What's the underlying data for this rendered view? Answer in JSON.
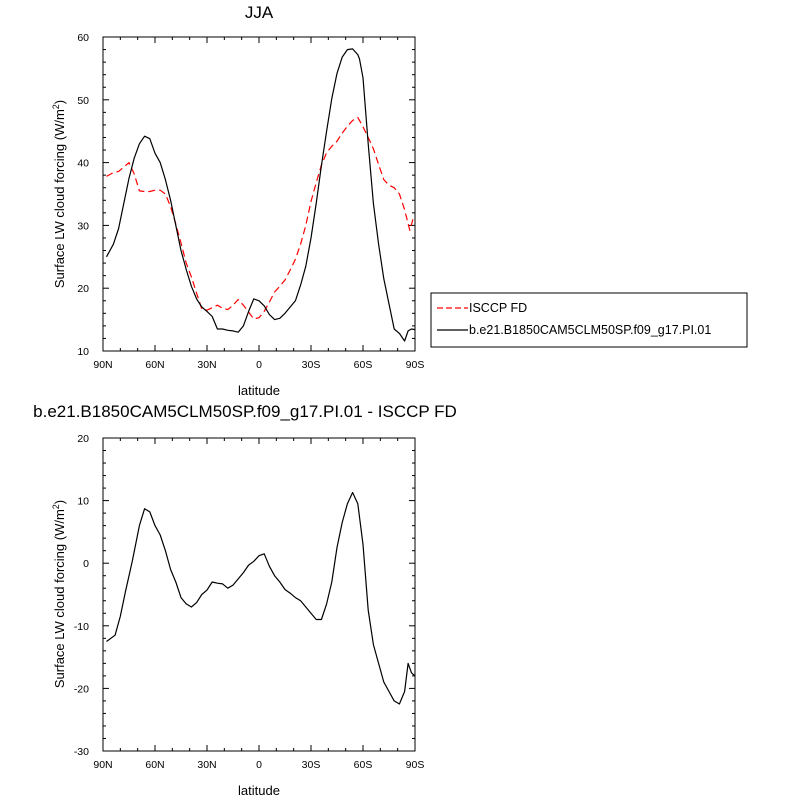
{
  "chart_data": [
    {
      "type": "line",
      "title": "JJA",
      "xlabel": "latitude",
      "ylabel": "Surface LW cloud forcing (W/m",
      "ylabel_sup": "2",
      "ylabel_close": ")",
      "xlim": [
        90,
        -90
      ],
      "ylim": [
        10,
        60
      ],
      "x_ticks": [
        90,
        60,
        30,
        0,
        -30,
        -60,
        -90
      ],
      "x_tick_labels": [
        "90N",
        "60N",
        "30N",
        "0",
        "30S",
        "60S",
        "90S"
      ],
      "y_ticks": [
        10,
        20,
        30,
        40,
        50,
        60
      ],
      "y_tick_labels": [
        "10",
        "20",
        "30",
        "40",
        "50",
        "60"
      ],
      "legend_position": "right",
      "series": [
        {
          "name": "ISCCP FD",
          "color": "#ff0000",
          "dash": "dashed",
          "x": [
            88,
            84,
            81,
            78,
            75,
            72,
            69,
            66,
            63,
            60,
            57,
            54,
            51,
            48,
            45,
            42,
            39,
            36,
            33,
            30,
            27,
            24,
            21,
            18,
            15,
            12,
            9,
            6,
            3,
            0,
            -3,
            -6,
            -9,
            -12,
            -15,
            -18,
            -21,
            -24,
            -27,
            -30,
            -33,
            -36,
            -39,
            -42,
            -45,
            -48,
            -51,
            -54,
            -57,
            -60,
            -63,
            -66,
            -69,
            -72,
            -75,
            -78,
            -81,
            -84,
            -87,
            -89
          ],
          "y": [
            37.8,
            38.4,
            38.6,
            39.3,
            40.0,
            38.2,
            35.5,
            35.4,
            35.4,
            35.6,
            35.6,
            35.0,
            33.0,
            30.2,
            27.2,
            24.0,
            21.8,
            19.2,
            16.7,
            16.5,
            16.9,
            17.3,
            16.8,
            16.6,
            17.3,
            18.2,
            17.3,
            16.2,
            15.1,
            15.3,
            16.3,
            17.8,
            19.4,
            20.3,
            21.3,
            22.9,
            24.6,
            27.0,
            30.0,
            33.8,
            36.8,
            39.6,
            41.6,
            42.6,
            43.4,
            44.7,
            45.8,
            46.7,
            47.2,
            45.7,
            44.0,
            42.2,
            39.7,
            37.3,
            36.4,
            36.0,
            35.0,
            32.5,
            29.2,
            31.2
          ]
        },
        {
          "name": "b.e21.B1850CAM5CLM50SP.f09_g17.PI.01",
          "color": "#000000",
          "dash": "solid",
          "x": [
            88,
            84,
            81,
            78,
            75,
            72,
            69,
            66,
            63,
            60,
            57,
            54,
            51,
            48,
            45,
            42,
            39,
            36,
            33,
            30,
            27,
            24,
            21,
            18,
            15,
            12,
            9,
            6,
            3,
            0,
            -3,
            -6,
            -9,
            -12,
            -15,
            -18,
            -21,
            -24,
            -27,
            -30,
            -33,
            -36,
            -39,
            -42,
            -45,
            -48,
            -51,
            -54,
            -57,
            -58,
            -60,
            -63,
            -66,
            -69,
            -72,
            -75,
            -78,
            -81,
            -84,
            -86,
            -88,
            -90
          ],
          "y": [
            25.0,
            27.0,
            29.5,
            33.5,
            37.5,
            40.7,
            43.0,
            44.2,
            43.8,
            41.5,
            40.0,
            37.3,
            34.0,
            30.0,
            26.0,
            23.0,
            20.3,
            18.3,
            17.0,
            16.3,
            15.5,
            13.5,
            13.5,
            13.3,
            13.2,
            13.0,
            14.0,
            16.3,
            18.3,
            18.0,
            17.2,
            15.8,
            15.0,
            15.2,
            16.0,
            17.0,
            18.0,
            20.5,
            23.5,
            28.0,
            33.5,
            39.5,
            45.0,
            50.2,
            54.2,
            56.8,
            58.0,
            58.1,
            57.2,
            56.5,
            53.5,
            43.0,
            33.5,
            27.0,
            21.5,
            17.5,
            13.5,
            12.8,
            11.6,
            13.2,
            13.5,
            13.4
          ]
        }
      ]
    },
    {
      "type": "line",
      "title": "b.e21.B1850CAM5CLM50SP.f09_g17.PI.01 - ISCCP FD",
      "xlabel": "latitude",
      "ylabel": "Surface LW cloud forcing (W/m",
      "ylabel_sup": "2",
      "ylabel_close": ")",
      "xlim": [
        90,
        -90
      ],
      "ylim": [
        -30,
        20
      ],
      "x_ticks": [
        90,
        60,
        30,
        0,
        -30,
        -60,
        -90
      ],
      "x_tick_labels": [
        "90N",
        "60N",
        "30N",
        "0",
        "30S",
        "60S",
        "90S"
      ],
      "y_ticks": [
        -30,
        -20,
        -10,
        0,
        10,
        20
      ],
      "y_tick_labels": [
        "-30",
        "-20",
        "-10",
        "0",
        "10",
        "20"
      ],
      "series": [
        {
          "color": "#000000",
          "dash": "solid",
          "x": [
            88,
            83,
            80,
            77,
            73,
            69,
            66,
            63,
            60,
            57,
            54,
            51,
            48,
            45,
            42,
            39,
            36,
            33,
            30,
            27,
            24,
            21,
            18,
            15,
            12,
            9,
            6,
            3,
            0,
            -3,
            -6,
            -9,
            -12,
            -15,
            -18,
            -21,
            -24,
            -27,
            -30,
            -33,
            -36,
            -39,
            -42,
            -45,
            -48,
            -51,
            -54,
            -57,
            -60,
            -63,
            -66,
            -69,
            -72,
            -75,
            -78,
            -81,
            -84,
            -86,
            -88,
            -90
          ],
          "y": [
            -12.5,
            -11.5,
            -8.5,
            -4.5,
            0.5,
            6.0,
            8.7,
            8.2,
            6.0,
            4.5,
            2.0,
            -1.0,
            -3.0,
            -5.5,
            -6.5,
            -7.0,
            -6.3,
            -5.0,
            -4.3,
            -3.0,
            -3.2,
            -3.3,
            -4.0,
            -3.5,
            -2.5,
            -1.5,
            -0.3,
            0.3,
            1.2,
            1.5,
            -0.5,
            -2.0,
            -3.0,
            -4.2,
            -4.8,
            -5.5,
            -6.0,
            -7.0,
            -8.0,
            -9.0,
            -9.0,
            -6.5,
            -3.0,
            2.5,
            6.5,
            9.5,
            11.3,
            9.5,
            3.0,
            -7.5,
            -13.0,
            -16.0,
            -19.0,
            -20.5,
            -22.0,
            -22.5,
            -20.5,
            -16.0,
            -17.5,
            -18.0
          ]
        }
      ]
    }
  ]
}
